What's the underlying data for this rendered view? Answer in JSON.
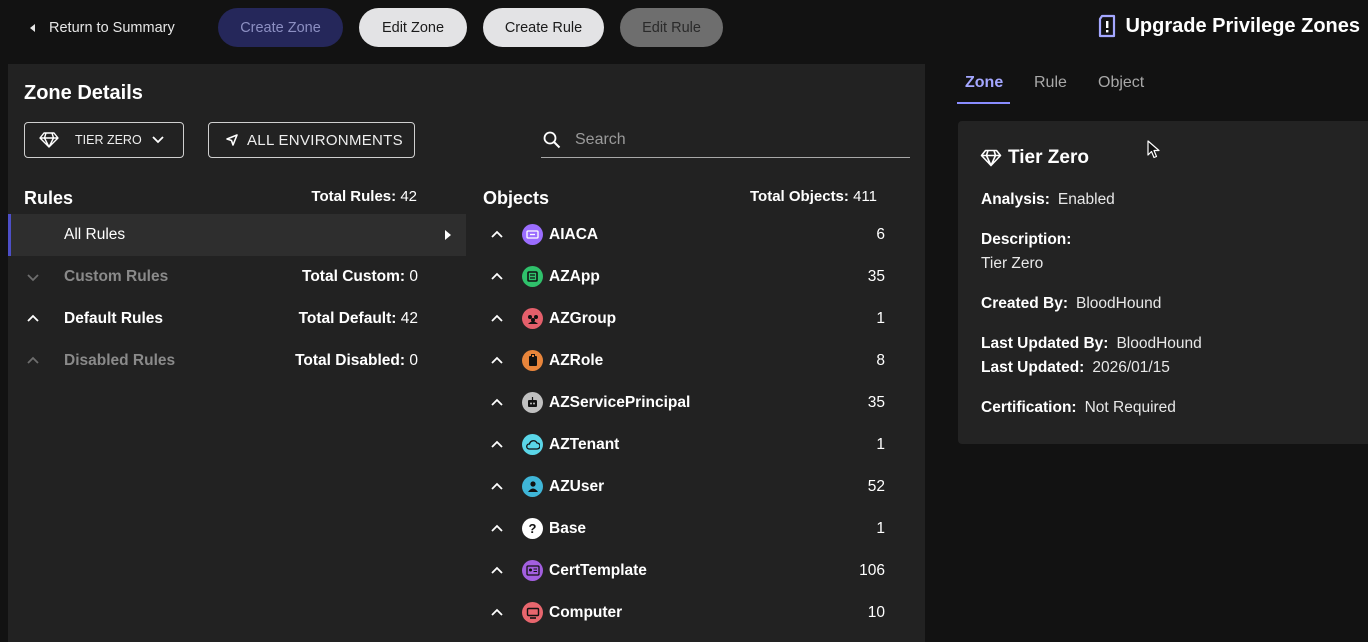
{
  "topbar": {
    "return_label": "Return to Summary",
    "create_zone": "Create Zone",
    "edit_zone": "Edit Zone",
    "create_rule": "Create Rule",
    "edit_rule": "Edit Rule",
    "title": "Upgrade Privilege Zones"
  },
  "zone_details": {
    "title": "Zone Details",
    "tier_select": "TIER ZERO",
    "environments": "ALL ENVIRONMENTS",
    "search_placeholder": "Search"
  },
  "rules": {
    "heading": "Rules",
    "total_label": "Total Rules:",
    "total_value": "42",
    "items": [
      {
        "label": "All Rules",
        "count_label": "",
        "count_value": ""
      },
      {
        "label": "Custom Rules",
        "count_label": "Total Custom:",
        "count_value": "0"
      },
      {
        "label": "Default Rules",
        "count_label": "Total Default:",
        "count_value": "42"
      },
      {
        "label": "Disabled Rules",
        "count_label": "Total Disabled:",
        "count_value": "0"
      }
    ]
  },
  "objects": {
    "heading": "Objects",
    "total_label": "Total Objects:",
    "total_value": "411",
    "items": [
      {
        "name": "AIACA",
        "count": "6",
        "icon": "aiaca-icon",
        "color": "#9b6dff"
      },
      {
        "name": "AZApp",
        "count": "35",
        "icon": "azapp-icon",
        "color": "#2fc16b"
      },
      {
        "name": "AZGroup",
        "count": "1",
        "icon": "azgroup-icon",
        "color": "#e45f6b"
      },
      {
        "name": "AZRole",
        "count": "8",
        "icon": "azrole-icon",
        "color": "#e8853b"
      },
      {
        "name": "AZServicePrincipal",
        "count": "35",
        "icon": "azserviceprincipal-icon",
        "color": "#c0c0c0"
      },
      {
        "name": "AZTenant",
        "count": "1",
        "icon": "aztenant-icon",
        "color": "#5ad6e8"
      },
      {
        "name": "AZUser",
        "count": "52",
        "icon": "azuser-icon",
        "color": "#3fb6d8"
      },
      {
        "name": "Base",
        "count": "1",
        "icon": "base-icon",
        "color": "#ffffff"
      },
      {
        "name": "CertTemplate",
        "count": "106",
        "icon": "certtemplate-icon",
        "color": "#a35fe0"
      },
      {
        "name": "Computer",
        "count": "10",
        "icon": "computer-icon",
        "color": "#e8666e"
      }
    ]
  },
  "tabs": [
    "Zone",
    "Rule",
    "Object"
  ],
  "detail": {
    "title": "Tier Zero",
    "analysis_label": "Analysis:",
    "analysis_value": "Enabled",
    "description_label": "Description:",
    "description_value": "Tier Zero",
    "created_by_label": "Created By:",
    "created_by_value": "BloodHound",
    "last_updated_by_label": "Last Updated By:",
    "last_updated_by_value": "BloodHound",
    "last_updated_label": "Last Updated:",
    "last_updated_value": "2026/01/15",
    "certification_label": "Certification:",
    "certification_value": "Not Required"
  }
}
